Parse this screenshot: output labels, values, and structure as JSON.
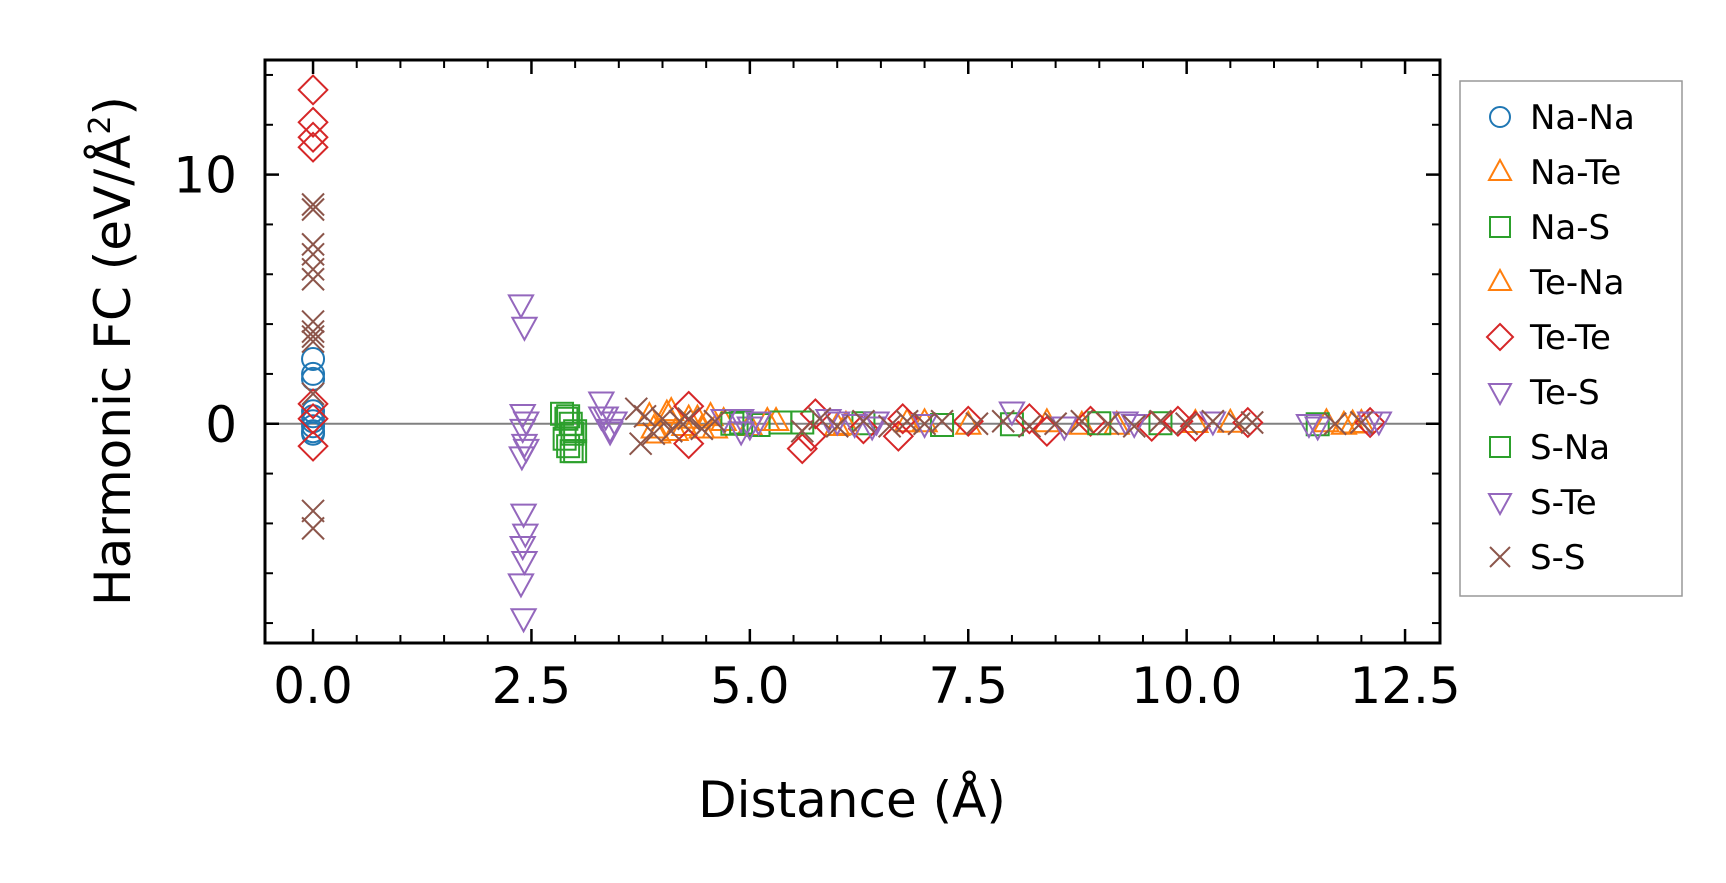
{
  "chart_data": {
    "type": "scatter",
    "title": "",
    "xlabel": "Distance (Å)",
    "ylabel_main": "Harmonic FC (eV/Å",
    "ylabel_sup": "2",
    "ylabel_close": ")",
    "xlim": [
      -0.55,
      12.9
    ],
    "ylim": [
      -8.8,
      14.6
    ],
    "xticks": [
      0.0,
      2.5,
      5.0,
      7.5,
      10.0,
      12.5
    ],
    "xtick_labels": [
      "0.0",
      "2.5",
      "5.0",
      "7.5",
      "10.0",
      "12.5"
    ],
    "yticks": [
      0,
      10
    ],
    "ytick_labels": [
      "0",
      "10"
    ],
    "x_minor_step": 0.5,
    "y_minor_step": 2,
    "zero_line": true,
    "legend_position": "outside-right",
    "colors": {
      "Na-Na": "#1f77b4",
      "Na-Te": "#ff7f0e",
      "Na-S": "#2ca02c",
      "Te-Na": "#ff7f0e",
      "Te-Te": "#d62728",
      "Te-S": "#9467bd",
      "S-Na": "#2ca02c",
      "S-Te": "#9467bd",
      "S-S": "#8c564b"
    },
    "series": [
      {
        "name": "Na-Na",
        "marker": "circle",
        "x": [
          0,
          0,
          0,
          0,
          0,
          0,
          0,
          0,
          0
        ],
        "y": [
          2.6,
          2.0,
          1.8,
          0.5,
          0.3,
          0.1,
          -0.1,
          -0.3,
          -0.4
        ]
      },
      {
        "name": "Na-Te",
        "marker": "triangle-up",
        "x": [
          3.85,
          3.95,
          4.05,
          4.15,
          4.3,
          4.45,
          4.55,
          4.7,
          5.0,
          5.3,
          6.0,
          6.8,
          7.5,
          8.4,
          9.2,
          10.1,
          11.6,
          11.8,
          12.0
        ],
        "y": [
          0.3,
          -0.4,
          0.4,
          -0.3,
          0.2,
          -0.2,
          0.3,
          0.1,
          -0.1,
          0.1,
          -0.1,
          0.05,
          -0.05,
          0.05,
          -0.05,
          0.02,
          0.05,
          -0.05,
          0.02
        ]
      },
      {
        "name": "Na-S",
        "marker": "square",
        "x": [
          2.85,
          2.9,
          2.95,
          3.0,
          2.88,
          2.92,
          2.96,
          4.9,
          5.1,
          5.35,
          6.3,
          8.0,
          9.7,
          11.5
        ],
        "y": [
          0.4,
          0.2,
          0.0,
          -0.3,
          -0.6,
          -0.9,
          -1.1,
          0.05,
          -0.05,
          0.05,
          0.02,
          -0.02,
          0.02,
          -0.02
        ]
      },
      {
        "name": "Te-Na",
        "marker": "triangle-up",
        "x": [
          3.9,
          4.1,
          4.25,
          4.4,
          4.6,
          5.2,
          6.1,
          7.0,
          8.8,
          10.5,
          11.9
        ],
        "y": [
          -0.2,
          0.5,
          -0.1,
          0.2,
          -0.2,
          0.1,
          -0.05,
          0.05,
          -0.05,
          0.03,
          0.0
        ]
      },
      {
        "name": "Te-Te",
        "marker": "diamond",
        "x": [
          0,
          0,
          0,
          0,
          0,
          0,
          0,
          4.3,
          4.3,
          5.75,
          5.7,
          5.6,
          6.3,
          6.75,
          6.7,
          7.5,
          8.2,
          8.4,
          8.9,
          9.6,
          9.9,
          10.1,
          10.7,
          12.1
        ],
        "y": [
          13.4,
          12.1,
          11.5,
          11.1,
          0.8,
          0.2,
          -0.9,
          0.7,
          -0.8,
          0.4,
          -0.5,
          -1.0,
          -0.2,
          0.2,
          -0.5,
          0.1,
          0.2,
          -0.3,
          0.1,
          -0.1,
          0.1,
          -0.1,
          0.05,
          0.05
        ]
      },
      {
        "name": "Te-S",
        "marker": "triangle-down",
        "x": [
          2.38,
          2.42,
          2.4,
          2.44,
          2.4,
          2.42,
          3.3,
          3.35,
          3.4,
          4.9,
          5.0,
          6.0,
          6.4,
          8.0,
          9.3,
          11.4,
          12.2
        ],
        "y": [
          4.8,
          3.9,
          0.4,
          0.1,
          -0.2,
          -0.8,
          0.9,
          0.3,
          -0.2,
          0.2,
          -0.1,
          0.1,
          -0.1,
          0.5,
          0.1,
          0.0,
          0.1
        ]
      },
      {
        "name": "S-Na",
        "marker": "square",
        "x": [
          2.92,
          2.97,
          3.0,
          4.8,
          5.6,
          7.2,
          9.0
        ],
        "y": [
          0.3,
          -0.4,
          -1.1,
          0.0,
          0.05,
          -0.05,
          0.02
        ]
      },
      {
        "name": "S-Te",
        "marker": "triangle-down",
        "x": [
          2.39,
          2.41,
          2.43,
          2.4,
          2.42,
          2.38,
          2.41,
          2.44,
          3.3,
          3.4,
          3.45,
          4.7,
          4.9,
          5.1,
          5.9,
          6.2,
          6.45,
          7.0,
          8.6,
          9.4,
          10.3,
          11.5,
          12.1
        ],
        "y": [
          -1.3,
          -3.6,
          -4.4,
          -4.9,
          -5.5,
          -6.4,
          -7.8,
          -1.0,
          0.3,
          -0.3,
          0.1,
          0.2,
          -0.3,
          0.1,
          0.2,
          0.0,
          0.1,
          0.0,
          -0.1,
          0.0,
          0.1,
          -0.1,
          0.1
        ]
      },
      {
        "name": "S-S",
        "marker": "x",
        "x": [
          0,
          0,
          0,
          0,
          0,
          0,
          0,
          0,
          0,
          0,
          0,
          0,
          0,
          3.7,
          3.75,
          3.8,
          3.9,
          4.0,
          4.1,
          4.2,
          4.3,
          4.45,
          4.6,
          5.6,
          5.8,
          6.0,
          6.3,
          6.6,
          6.8,
          7.0,
          7.2,
          7.6,
          7.9,
          8.2,
          8.5,
          8.8,
          9.1,
          9.4,
          9.7,
          10.0,
          10.3,
          10.6,
          10.75,
          11.7,
          12.0
        ],
        "y": [
          8.8,
          8.6,
          7.2,
          6.8,
          6.2,
          5.8,
          4.1,
          3.7,
          3.5,
          3.3,
          1.2,
          -3.5,
          -4.2,
          0.6,
          -0.8,
          0.3,
          -0.4,
          0.2,
          -0.3,
          0.1,
          0.2,
          -0.2,
          0.1,
          -0.3,
          0.2,
          -0.1,
          0.1,
          -0.1,
          0.1,
          0.0,
          0.1,
          0.0,
          0.1,
          -0.1,
          0.0,
          0.1,
          0.0,
          -0.1,
          0.1,
          0.0,
          0.1,
          0.0,
          0.05,
          0.0,
          0.05
        ]
      }
    ]
  }
}
